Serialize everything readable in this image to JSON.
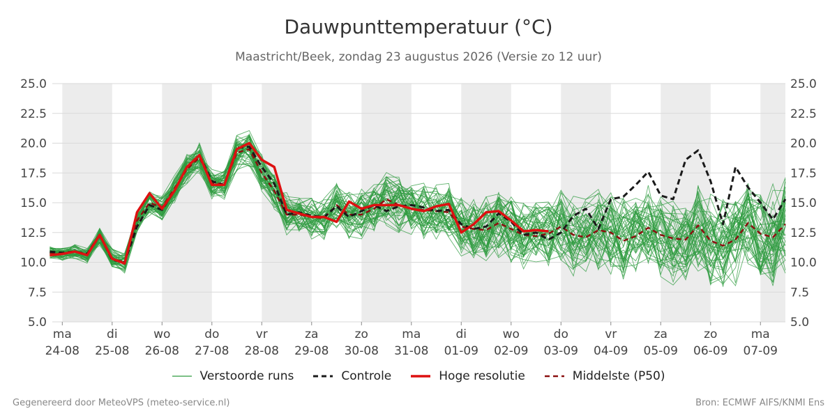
{
  "header": {
    "title": "Dauwpunttemperatuur (°C)",
    "subtitle": "Maastricht/Beek, zondag 23 augustus 2026 (Versie zo 12 uur)"
  },
  "footer": {
    "left": "Gegenereerd door MeteoVPS (meteo-service.nl)",
    "right": "Bron: ECMWF AIFS/KNMI Ens"
  },
  "legend": [
    {
      "label": "Verstoorde runs",
      "color": "#2e9b3f",
      "style": "thin-solid"
    },
    {
      "label": "Controle",
      "color": "#1a1a1a",
      "style": "dashed"
    },
    {
      "label": "Hoge resolutie",
      "color": "#dd1111",
      "style": "thick-solid"
    },
    {
      "label": "Middelste (P50)",
      "color": "#8b1010",
      "style": "dashed"
    }
  ],
  "chart_data": {
    "type": "line",
    "title": "Dauwpunttemperatuur (°C)",
    "ylim": [
      5.0,
      25.0
    ],
    "yticks": [
      "5.0",
      "7.5",
      "10.0",
      "12.5",
      "15.0",
      "17.5",
      "20.0",
      "22.5",
      "25.0"
    ],
    "x_day_range": [
      -0.2,
      14.5
    ],
    "xticks": [
      {
        "day": 0,
        "weekday": "ma",
        "date": "24-08"
      },
      {
        "day": 1,
        "weekday": "di",
        "date": "25-08"
      },
      {
        "day": 2,
        "weekday": "wo",
        "date": "26-08"
      },
      {
        "day": 3,
        "weekday": "do",
        "date": "27-08"
      },
      {
        "day": 4,
        "weekday": "vr",
        "date": "28-08"
      },
      {
        "day": 5,
        "weekday": "za",
        "date": "29-08"
      },
      {
        "day": 6,
        "weekday": "zo",
        "date": "30-08"
      },
      {
        "day": 7,
        "weekday": "ma",
        "date": "31-08"
      },
      {
        "day": 8,
        "weekday": "di",
        "date": "01-09"
      },
      {
        "day": 9,
        "weekday": "wo",
        "date": "02-09"
      },
      {
        "day": 10,
        "weekday": "do",
        "date": "03-09"
      },
      {
        "day": 11,
        "weekday": "vr",
        "date": "04-09"
      },
      {
        "day": 12,
        "weekday": "za",
        "date": "05-09"
      },
      {
        "day": 13,
        "weekday": "zo",
        "date": "06-09"
      },
      {
        "day": 14,
        "weekday": "ma",
        "date": "07-09"
      }
    ],
    "shaded_days": [
      [
        0,
        1
      ],
      [
        2,
        3
      ],
      [
        4,
        5
      ],
      [
        6,
        7
      ],
      [
        8,
        9
      ],
      [
        10,
        11
      ],
      [
        12,
        13
      ],
      [
        14,
        14.5
      ]
    ],
    "grid": true,
    "legend_position": "bottom",
    "colors": {
      "ensemble": "#2e9b3f",
      "control": "#1a1a1a",
      "hires": "#dd1111",
      "median": "#8b1010",
      "shade": "#ececec",
      "grid": "#d9d9d9"
    },
    "series": [
      {
        "name": "Controle",
        "x": [
          -0.25,
          0,
          0.25,
          0.5,
          0.75,
          1,
          1.25,
          1.5,
          1.75,
          2,
          2.25,
          2.5,
          2.75,
          3,
          3.25,
          3.5,
          3.75,
          4,
          4.25,
          4.5,
          4.75,
          5,
          5.25,
          5.5,
          5.75,
          6,
          6.25,
          6.5,
          6.75,
          7,
          7.25,
          7.5,
          7.75,
          8,
          8.25,
          8.5,
          8.75,
          9,
          9.25,
          9.5,
          9.75,
          10,
          10.25,
          10.5,
          10.75,
          11,
          11.25,
          11.5,
          11.75,
          12,
          12.25,
          12.5,
          12.75,
          13,
          13.25,
          13.5,
          13.75,
          14,
          14.25,
          14.5
        ],
        "values": [
          10.9,
          10.8,
          10.9,
          10.7,
          12.3,
          10.2,
          10.0,
          13.0,
          14.8,
          14.4,
          16.0,
          18.0,
          19.0,
          16.8,
          16.5,
          19.6,
          19.7,
          18.0,
          16.6,
          14.0,
          14.2,
          13.9,
          13.8,
          14.7,
          13.8,
          14.3,
          14.8,
          14.3,
          14.7,
          14.8,
          14.6,
          14.3,
          14.4,
          13.2,
          12.8,
          13.0,
          14.1,
          13.4,
          12.3,
          12.5,
          11.9,
          12.5,
          13.9,
          14.5,
          12.8,
          15.3,
          15.5,
          16.5,
          17.6,
          15.6,
          15.3,
          18.6,
          19.4,
          16.8,
          13.2,
          18.0,
          16.3,
          15.0,
          13.6,
          15.3
        ]
      },
      {
        "name": "Hoge resolutie",
        "x": [
          -0.25,
          0,
          0.25,
          0.5,
          0.75,
          1,
          1.25,
          1.5,
          1.75,
          2,
          2.25,
          2.5,
          2.75,
          3,
          3.25,
          3.5,
          3.75,
          4,
          4.25,
          4.5,
          4.75,
          5,
          5.25,
          5.5,
          5.75,
          6,
          6.25,
          6.5,
          6.75,
          7,
          7.25,
          7.5,
          7.75,
          8,
          8.25,
          8.5,
          8.75,
          9,
          9.25,
          9.5,
          9.75
        ],
        "values": [
          10.6,
          10.7,
          10.9,
          10.6,
          12.3,
          10.3,
          9.9,
          14.2,
          15.8,
          14.5,
          16.0,
          18.0,
          19.0,
          16.5,
          16.5,
          19.5,
          20.0,
          18.6,
          18.0,
          14.4,
          14.1,
          13.8,
          13.8,
          13.4,
          15.1,
          14.5,
          14.8,
          14.8,
          14.8,
          14.5,
          14.3,
          14.7,
          14.9,
          12.5,
          13.2,
          14.2,
          14.3,
          13.5,
          12.6,
          12.7,
          12.6
        ]
      },
      {
        "name": "Middelste (P50)",
        "x": [
          -0.25,
          0,
          0.25,
          0.5,
          0.75,
          1,
          1.25,
          1.5,
          1.75,
          2,
          2.25,
          2.5,
          2.75,
          3,
          3.25,
          3.5,
          3.75,
          4,
          4.25,
          4.5,
          4.75,
          5,
          5.25,
          5.5,
          5.75,
          6,
          6.25,
          6.5,
          6.75,
          7,
          7.25,
          7.5,
          7.75,
          8,
          8.25,
          8.5,
          8.75,
          9,
          9.25,
          9.5,
          9.75,
          10,
          10.25,
          10.5,
          10.75,
          11,
          11.25,
          11.5,
          11.75,
          12,
          12.25,
          12.5,
          12.75,
          13,
          13.25,
          13.5,
          13.75,
          14,
          14.25,
          14.5
        ],
        "values": [
          10.8,
          10.7,
          10.9,
          10.6,
          12.2,
          10.3,
          10.0,
          13.5,
          15.0,
          14.6,
          16.2,
          17.8,
          18.8,
          16.6,
          16.6,
          19.2,
          19.5,
          17.5,
          16.0,
          14.0,
          14.0,
          13.8,
          13.7,
          14.8,
          14.0,
          14.0,
          14.5,
          15.3,
          14.8,
          14.5,
          14.4,
          14.3,
          14.2,
          13.0,
          12.8,
          12.7,
          13.3,
          12.8,
          12.3,
          12.2,
          12.4,
          13.0,
          12.3,
          12.1,
          12.7,
          12.5,
          11.8,
          12.2,
          12.9,
          12.3,
          12.0,
          11.9,
          13.1,
          11.8,
          11.4,
          11.9,
          13.3,
          12.4,
          12.1,
          13.2
        ]
      }
    ]
  }
}
